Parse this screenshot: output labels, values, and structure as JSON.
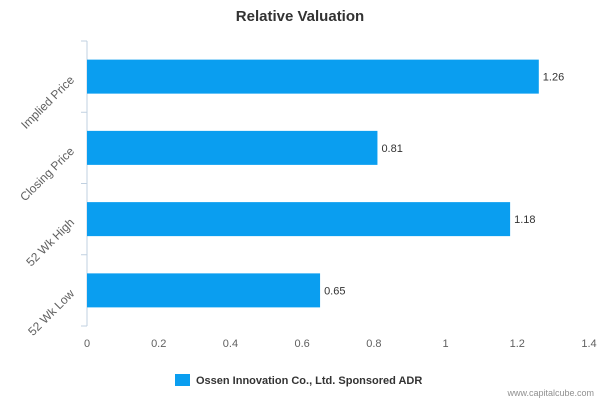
{
  "chart_data": {
    "type": "bar",
    "orientation": "horizontal",
    "title": "Relative Valuation",
    "categories": [
      "Implied Price",
      "Closing Price",
      "52 Wk High",
      "52 Wk Low"
    ],
    "series": [
      {
        "name": "Ossen Innovation Co., Ltd. Sponsored ADR",
        "values": [
          1.26,
          0.81,
          1.18,
          0.65
        ],
        "labels": [
          "1.26",
          "0.81",
          "1.18",
          "0.65"
        ],
        "color": "#0a9ef0"
      }
    ],
    "xlim": [
      0,
      1.4
    ],
    "xticks": [
      0,
      0.2,
      0.4,
      0.6,
      0.8,
      1,
      1.2,
      1.4
    ],
    "xtick_labels": [
      "0",
      "0.2",
      "0.4",
      "0.6",
      "0.8",
      "1",
      "1.2",
      "1.4"
    ],
    "grid": false,
    "legend": "bottom-center"
  },
  "credit": "www.capitalcube.com"
}
